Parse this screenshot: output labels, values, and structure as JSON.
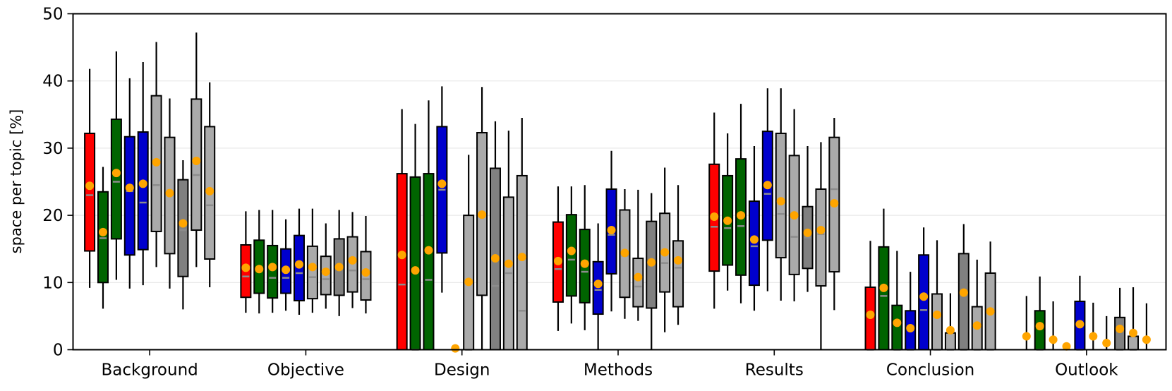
{
  "chart_data": {
    "type": "boxplot",
    "title": "",
    "xlabel": "",
    "ylabel": "space per topic [%]",
    "ylim": [
      0,
      50
    ],
    "yticks": [
      0,
      10,
      20,
      30,
      40,
      50
    ],
    "grid": "horizontal",
    "colors": {
      "red": "#ff0000",
      "dgreen": "#006400",
      "blue": "#0000cd",
      "lgray": "#aaaaaa",
      "dgray": "#808080",
      "median": "#8c8c8c",
      "mean": "#ffa500"
    },
    "categories": [
      {
        "name": "Background",
        "boxes": [
          {
            "color": "red",
            "q1": 14.7,
            "q3": 32.2,
            "wlo": 9.2,
            "whi": 41.8,
            "median": 23.0,
            "mean": 24.4
          },
          {
            "color": "dgreen",
            "q1": 10.0,
            "q3": 23.5,
            "wlo": 6.1,
            "whi": 27.2,
            "median": 16.6,
            "mean": 17.5
          },
          {
            "color": "dgreen",
            "q1": 16.5,
            "q3": 34.3,
            "wlo": 10.4,
            "whi": 44.4,
            "median": 25.0,
            "mean": 26.3
          },
          {
            "color": "blue",
            "q1": 14.1,
            "q3": 31.7,
            "wlo": 9.1,
            "whi": 40.4,
            "median": 23.6,
            "mean": 24.1
          },
          {
            "color": "blue",
            "q1": 14.9,
            "q3": 32.4,
            "wlo": 9.6,
            "whi": 42.8,
            "median": 21.9,
            "mean": 24.7
          },
          {
            "color": "lgray",
            "q1": 17.6,
            "q3": 37.8,
            "wlo": 12.3,
            "whi": 45.8,
            "median": 24.5,
            "mean": 27.9
          },
          {
            "color": "lgray",
            "q1": 14.3,
            "q3": 31.6,
            "wlo": 9.1,
            "whi": 37.4,
            "median": 23.3,
            "mean": 23.3
          },
          {
            "color": "dgray",
            "q1": 10.9,
            "q3": 25.3,
            "wlo": 6.0,
            "whi": 28.2,
            "median": 17.8,
            "mean": 18.8
          },
          {
            "color": "lgray",
            "q1": 17.8,
            "q3": 37.3,
            "wlo": 12.3,
            "whi": 47.2,
            "median": 26.0,
            "mean": 28.1
          },
          {
            "color": "lgray",
            "q1": 13.5,
            "q3": 33.2,
            "wlo": 9.3,
            "whi": 39.8,
            "median": 21.5,
            "mean": 23.6
          }
        ]
      },
      {
        "name": "Objective",
        "boxes": [
          {
            "color": "red",
            "q1": 7.8,
            "q3": 15.6,
            "wlo": 5.5,
            "whi": 20.6,
            "median": 10.9,
            "mean": 12.2
          },
          {
            "color": "dgreen",
            "q1": 8.4,
            "q3": 16.3,
            "wlo": 5.4,
            "whi": 20.8,
            "median": 11.8,
            "mean": 12.0
          },
          {
            "color": "dgreen",
            "q1": 7.7,
            "q3": 15.5,
            "wlo": 5.5,
            "whi": 20.8,
            "median": 10.7,
            "mean": 12.3
          },
          {
            "color": "blue",
            "q1": 8.4,
            "q3": 15.0,
            "wlo": 5.8,
            "whi": 19.4,
            "median": 10.7,
            "mean": 11.9
          },
          {
            "color": "blue",
            "q1": 7.3,
            "q3": 17.0,
            "wlo": 5.2,
            "whi": 21.0,
            "median": 11.4,
            "mean": 12.7
          },
          {
            "color": "lgray",
            "q1": 7.6,
            "q3": 15.4,
            "wlo": 5.5,
            "whi": 21.0,
            "median": 10.8,
            "mean": 12.3
          },
          {
            "color": "lgray",
            "q1": 8.2,
            "q3": 13.9,
            "wlo": 6.1,
            "whi": 18.8,
            "median": 10.5,
            "mean": 11.6
          },
          {
            "color": "dgray",
            "q1": 8.1,
            "q3": 16.5,
            "wlo": 5.0,
            "whi": 20.8,
            "median": 12.0,
            "mean": 12.3
          },
          {
            "color": "lgray",
            "q1": 8.6,
            "q3": 16.8,
            "wlo": 6.2,
            "whi": 20.5,
            "median": 11.8,
            "mean": 13.3
          },
          {
            "color": "lgray",
            "q1": 7.4,
            "q3": 14.6,
            "wlo": 5.4,
            "whi": 19.9,
            "median": 10.5,
            "mean": 11.5
          }
        ]
      },
      {
        "name": "Design",
        "boxes": [
          {
            "color": "red",
            "q1": 0.0,
            "q3": 26.2,
            "wlo": 0.0,
            "whi": 35.8,
            "median": 9.7,
            "mean": 14.1
          },
          {
            "color": "dgreen",
            "q1": 0.0,
            "q3": 25.7,
            "wlo": 0.0,
            "whi": 33.6,
            "median": 0.0,
            "mean": 11.8
          },
          {
            "color": "dgreen",
            "q1": 0.0,
            "q3": 26.2,
            "wlo": 0.0,
            "whi": 37.1,
            "median": 10.4,
            "mean": 14.8
          },
          {
            "color": "blue",
            "q1": 14.4,
            "q3": 33.2,
            "wlo": 8.5,
            "whi": 39.2,
            "median": 23.8,
            "mean": 24.7
          },
          {
            "color": "lgray",
            "q1": 0.0,
            "q3": 0.0,
            "wlo": 0.0,
            "whi": 0.0,
            "median": 0.0,
            "mean": 0.2
          },
          {
            "color": "lgray",
            "q1": 0.0,
            "q3": 20.0,
            "wlo": 0.0,
            "whi": 29.0,
            "median": 0.0,
            "mean": 10.1
          },
          {
            "color": "lgray",
            "q1": 8.1,
            "q3": 32.3,
            "wlo": 0.0,
            "whi": 39.1,
            "median": 20.0,
            "mean": 20.1
          },
          {
            "color": "dgray",
            "q1": 0.0,
            "q3": 27.0,
            "wlo": 0.0,
            "whi": 34.0,
            "median": 9.5,
            "mean": 13.6
          },
          {
            "color": "lgray",
            "q1": 0.0,
            "q3": 22.7,
            "wlo": 0.0,
            "whi": 32.6,
            "median": 11.4,
            "mean": 12.8
          },
          {
            "color": "lgray",
            "q1": 0.0,
            "q3": 25.9,
            "wlo": 0.0,
            "whi": 34.5,
            "median": 5.8,
            "mean": 13.8
          }
        ]
      },
      {
        "name": "Methods",
        "boxes": [
          {
            "color": "red",
            "q1": 7.1,
            "q3": 19.0,
            "wlo": 2.8,
            "whi": 24.3,
            "median": 12.0,
            "mean": 13.2
          },
          {
            "color": "dgreen",
            "q1": 8.0,
            "q3": 20.1,
            "wlo": 3.9,
            "whi": 24.3,
            "median": 13.4,
            "mean": 14.7
          },
          {
            "color": "dgreen",
            "q1": 7.0,
            "q3": 17.9,
            "wlo": 2.9,
            "whi": 24.5,
            "median": 11.6,
            "mean": 12.8
          },
          {
            "color": "blue",
            "q1": 5.3,
            "q3": 13.1,
            "wlo": 0.0,
            "whi": 18.8,
            "median": 8.9,
            "mean": 9.8
          },
          {
            "color": "blue",
            "q1": 11.3,
            "q3": 23.9,
            "wlo": 5.7,
            "whi": 29.6,
            "median": 17.1,
            "mean": 17.8
          },
          {
            "color": "lgray",
            "q1": 7.8,
            "q3": 20.8,
            "wlo": 4.6,
            "whi": 23.9,
            "median": 14.0,
            "mean": 14.4
          },
          {
            "color": "lgray",
            "q1": 6.4,
            "q3": 13.6,
            "wlo": 4.3,
            "whi": 23.8,
            "median": 9.4,
            "mean": 10.8
          },
          {
            "color": "dgray",
            "q1": 6.2,
            "q3": 19.1,
            "wlo": 0.0,
            "whi": 23.3,
            "median": 13.1,
            "mean": 13.0
          },
          {
            "color": "lgray",
            "q1": 8.6,
            "q3": 20.3,
            "wlo": 2.6,
            "whi": 27.1,
            "median": 12.9,
            "mean": 14.5
          },
          {
            "color": "lgray",
            "q1": 6.4,
            "q3": 16.2,
            "wlo": 3.7,
            "whi": 24.5,
            "median": 12.2,
            "mean": 13.3
          }
        ]
      },
      {
        "name": "Results",
        "boxes": [
          {
            "color": "red",
            "q1": 11.7,
            "q3": 27.6,
            "wlo": 6.1,
            "whi": 35.3,
            "median": 18.3,
            "mean": 19.8
          },
          {
            "color": "dgreen",
            "q1": 12.6,
            "q3": 25.9,
            "wlo": 8.8,
            "whi": 32.2,
            "median": 18.1,
            "mean": 19.2
          },
          {
            "color": "dgreen",
            "q1": 11.1,
            "q3": 28.4,
            "wlo": 6.9,
            "whi": 36.6,
            "median": 18.4,
            "mean": 20.0
          },
          {
            "color": "blue",
            "q1": 9.6,
            "q3": 22.1,
            "wlo": 5.8,
            "whi": 30.3,
            "median": 15.4,
            "mean": 16.4
          },
          {
            "color": "blue",
            "q1": 16.3,
            "q3": 32.5,
            "wlo": 8.7,
            "whi": 38.9,
            "median": 23.2,
            "mean": 24.5
          },
          {
            "color": "lgray",
            "q1": 13.7,
            "q3": 32.2,
            "wlo": 7.3,
            "whi": 38.9,
            "median": 20.2,
            "mean": 22.1
          },
          {
            "color": "lgray",
            "q1": 11.2,
            "q3": 28.9,
            "wlo": 7.2,
            "whi": 35.8,
            "median": 16.8,
            "mean": 20.0
          },
          {
            "color": "dgray",
            "q1": 12.1,
            "q3": 21.3,
            "wlo": 8.6,
            "whi": 30.3,
            "median": 16.7,
            "mean": 17.4
          },
          {
            "color": "lgray",
            "q1": 9.5,
            "q3": 23.9,
            "wlo": 0.0,
            "whi": 30.9,
            "median": 17.2,
            "mean": 17.8
          },
          {
            "color": "lgray",
            "q1": 11.6,
            "q3": 31.6,
            "wlo": 5.9,
            "whi": 34.5,
            "median": 23.9,
            "mean": 21.8
          }
        ]
      },
      {
        "name": "Conclusion",
        "boxes": [
          {
            "color": "red",
            "q1": 0.0,
            "q3": 9.3,
            "wlo": 0.0,
            "whi": 16.2,
            "median": 0.0,
            "mean": 5.2
          },
          {
            "color": "dgreen",
            "q1": 0.0,
            "q3": 15.3,
            "wlo": 0.0,
            "whi": 21.0,
            "median": 8.0,
            "mean": 9.2
          },
          {
            "color": "dgreen",
            "q1": 0.0,
            "q3": 6.6,
            "wlo": 0.0,
            "whi": 14.7,
            "median": 0.0,
            "mean": 4.0
          },
          {
            "color": "blue",
            "q1": 0.0,
            "q3": 5.8,
            "wlo": 0.0,
            "whi": 11.6,
            "median": 0.0,
            "mean": 3.2
          },
          {
            "color": "blue",
            "q1": 0.0,
            "q3": 14.1,
            "wlo": 0.0,
            "whi": 18.2,
            "median": 5.9,
            "mean": 7.9
          },
          {
            "color": "lgray",
            "q1": 0.0,
            "q3": 8.3,
            "wlo": 0.0,
            "whi": 16.3,
            "median": 0.0,
            "mean": 5.2
          },
          {
            "color": "lgray",
            "q1": 0.0,
            "q3": 2.5,
            "wlo": 0.0,
            "whi": 8.4,
            "median": 0.0,
            "mean": 2.9
          },
          {
            "color": "dgray",
            "q1": 0.0,
            "q3": 14.3,
            "wlo": 0.0,
            "whi": 18.7,
            "median": 0.0,
            "mean": 8.5
          },
          {
            "color": "lgray",
            "q1": 0.0,
            "q3": 6.4,
            "wlo": 0.0,
            "whi": 13.4,
            "median": 0.0,
            "mean": 3.6
          },
          {
            "color": "lgray",
            "q1": 0.0,
            "q3": 11.4,
            "wlo": 0.0,
            "whi": 16.1,
            "median": 0.0,
            "mean": 5.7
          }
        ]
      },
      {
        "name": "Outlook",
        "boxes": [
          {
            "color": "red",
            "q1": 0.0,
            "q3": 0.0,
            "wlo": 0.0,
            "whi": 8.0,
            "median": 0.0,
            "mean": 2.0
          },
          {
            "color": "dgreen",
            "q1": 0.0,
            "q3": 5.8,
            "wlo": 0.0,
            "whi": 10.9,
            "median": 0.0,
            "mean": 3.5
          },
          {
            "color": "dgreen",
            "q1": 0.0,
            "q3": 0.0,
            "wlo": 0.0,
            "whi": 7.2,
            "median": 0.0,
            "mean": 1.5
          },
          {
            "color": "blue",
            "q1": 0.0,
            "q3": 0.0,
            "wlo": 0.0,
            "whi": 0.0,
            "median": 0.0,
            "mean": 0.5
          },
          {
            "color": "blue",
            "q1": 0.0,
            "q3": 7.2,
            "wlo": 0.0,
            "whi": 11.0,
            "median": 0.0,
            "mean": 3.8
          },
          {
            "color": "lgray",
            "q1": 0.0,
            "q3": 0.0,
            "wlo": 0.0,
            "whi": 7.0,
            "median": 0.0,
            "mean": 2.0
          },
          {
            "color": "lgray",
            "q1": 0.0,
            "q3": 0.0,
            "wlo": 0.0,
            "whi": 5.0,
            "median": 0.0,
            "mean": 1.0
          },
          {
            "color": "dgray",
            "q1": 0.0,
            "q3": 4.8,
            "wlo": 0.0,
            "whi": 9.2,
            "median": 0.0,
            "mean": 3.1
          },
          {
            "color": "lgray",
            "q1": 0.0,
            "q3": 2.0,
            "wlo": 0.0,
            "whi": 9.3,
            "median": 0.0,
            "mean": 2.5
          },
          {
            "color": "lgray",
            "q1": 0.0,
            "q3": 0.0,
            "wlo": 0.0,
            "whi": 6.9,
            "median": 0.0,
            "mean": 1.5
          }
        ]
      }
    ]
  }
}
